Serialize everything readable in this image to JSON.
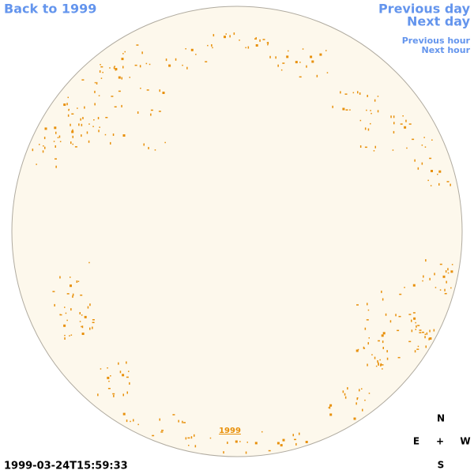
{
  "nav": {
    "back": "Back to 1999",
    "previous_day": "Previous day",
    "next_day": "Next day",
    "previous_hour": "Previous hour",
    "next_hour": "Next hour"
  },
  "disk_link": "1999",
  "timestamp": "1999-03-24T15:59:33",
  "compass": {
    "north": "N",
    "east": "E",
    "center": "+",
    "west": "W",
    "south": "S"
  }
}
